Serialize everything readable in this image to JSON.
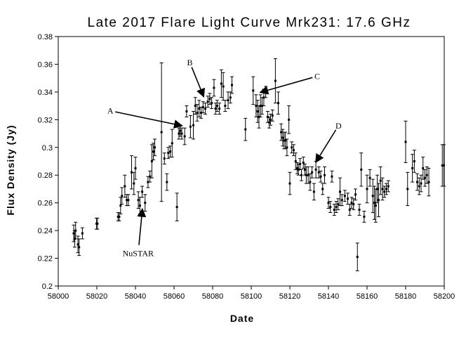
{
  "chart_data": {
    "type": "scatter",
    "title": "Late 2017 Flare Light Curve Mrk231: 17.6 GHz",
    "xlabel": "Date",
    "ylabel": "Flux Density (Jy)",
    "xlim": [
      58000,
      58200
    ],
    "ylim": [
      0.2,
      0.38
    ],
    "xticks": [
      58000,
      58020,
      58040,
      58060,
      58080,
      58100,
      58120,
      58140,
      58160,
      58180,
      58200
    ],
    "yticks": [
      0.2,
      0.22,
      0.24,
      0.26,
      0.28,
      0.3,
      0.32,
      0.34,
      0.36,
      0.38
    ],
    "xtick_labels": [
      "58000",
      "58020",
      "58040",
      "58060",
      "58080",
      "58100",
      "58120",
      "58140",
      "58160",
      "58180",
      "58200"
    ],
    "ytick_labels": [
      "0.2",
      "0.22",
      "0.24",
      "0.26",
      "0.28",
      "0.3",
      "0.32",
      "0.34",
      "0.36",
      "0.38"
    ],
    "grid": false,
    "legend": false,
    "marker_color": "#000000",
    "series": [
      {
        "points": [
          [
            58008.0,
            0.238,
            0.006
          ],
          [
            58008.5,
            0.234,
            0.006
          ],
          [
            58009.0,
            0.24,
            0.006
          ],
          [
            58010.2,
            0.23,
            0.006
          ],
          [
            58010.8,
            0.228,
            0.006
          ],
          [
            58012.5,
            0.238,
            0.004
          ],
          [
            58019.8,
            0.245,
            0.004
          ],
          [
            58020.3,
            0.245,
            0.004
          ],
          [
            58031.0,
            0.25,
            0.003
          ],
          [
            58031.6,
            0.25,
            0.003
          ],
          [
            58032.3,
            0.258,
            0.006
          ],
          [
            58033.0,
            0.265,
            0.006
          ],
          [
            58034.5,
            0.272,
            0.008
          ],
          [
            58035.5,
            0.262,
            0.004
          ],
          [
            58036.3,
            0.262,
            0.004
          ],
          [
            58038.0,
            0.282,
            0.012
          ],
          [
            58039.2,
            0.274,
            0.008
          ],
          [
            58040.0,
            0.285,
            0.008
          ],
          [
            58041.5,
            0.262,
            0.006
          ],
          [
            58042.3,
            0.258,
            0.006
          ],
          [
            58043.5,
            0.268,
            0.004
          ],
          [
            58045.0,
            0.26,
            0.006
          ],
          [
            58046.5,
            0.275,
            0.004
          ],
          [
            58047.5,
            0.279,
            0.004
          ],
          [
            58048.5,
            0.29,
            0.012
          ],
          [
            58049.3,
            0.297,
            0.006
          ],
          [
            58050.0,
            0.3,
            0.006
          ],
          [
            58053.5,
            0.311,
            0.05
          ],
          [
            58055.0,
            0.292,
            0.004
          ],
          [
            58056.3,
            0.275,
            0.006
          ],
          [
            58057.0,
            0.296,
            0.004
          ],
          [
            58058.0,
            0.297,
            0.004
          ],
          [
            58059.0,
            0.303,
            0.01
          ],
          [
            58061.5,
            0.257,
            0.01
          ],
          [
            58062.5,
            0.31,
            0.004
          ],
          [
            58063.2,
            0.312,
            0.004
          ],
          [
            58064.0,
            0.31,
            0.004
          ],
          [
            58065.5,
            0.308,
            0.006
          ],
          [
            58066.5,
            0.326,
            0.004
          ],
          [
            58068.5,
            0.315,
            0.008
          ],
          [
            58070.0,
            0.316,
            0.01
          ],
          [
            58071.0,
            0.33,
            0.006
          ],
          [
            58072.0,
            0.325,
            0.006
          ],
          [
            58073.0,
            0.328,
            0.006
          ],
          [
            58074.0,
            0.325,
            0.004
          ],
          [
            58075.0,
            0.329,
            0.004
          ],
          [
            58076.2,
            0.328,
            0.004
          ],
          [
            58077.5,
            0.333,
            0.004
          ],
          [
            58078.5,
            0.335,
            0.004
          ],
          [
            58079.5,
            0.332,
            0.004
          ],
          [
            58080.7,
            0.343,
            0.006
          ],
          [
            58081.5,
            0.328,
            0.004
          ],
          [
            58082.3,
            0.33,
            0.004
          ],
          [
            58083.5,
            0.328,
            0.004
          ],
          [
            58084.5,
            0.346,
            0.01
          ],
          [
            58085.5,
            0.344,
            0.01
          ],
          [
            58086.5,
            0.33,
            0.004
          ],
          [
            58088.0,
            0.334,
            0.006
          ],
          [
            58089.2,
            0.336,
            0.004
          ],
          [
            58090.0,
            0.345,
            0.006
          ],
          [
            58097.0,
            0.313,
            0.008
          ],
          [
            58101.0,
            0.341,
            0.01
          ],
          [
            58102.5,
            0.33,
            0.008
          ],
          [
            58103.3,
            0.326,
            0.008
          ],
          [
            58104.0,
            0.322,
            0.008
          ],
          [
            58104.8,
            0.33,
            0.008
          ],
          [
            58105.6,
            0.33,
            0.006
          ],
          [
            58106.5,
            0.336,
            0.006
          ],
          [
            58107.5,
            0.34,
            0.004
          ],
          [
            58108.5,
            0.322,
            0.004
          ],
          [
            58109.3,
            0.318,
            0.004
          ],
          [
            58110.0,
            0.32,
            0.004
          ],
          [
            58111.0,
            0.323,
            0.004
          ],
          [
            58112.5,
            0.348,
            0.016
          ],
          [
            58114.0,
            0.332,
            0.008
          ],
          [
            58115.5,
            0.311,
            0.006
          ],
          [
            58116.3,
            0.307,
            0.006
          ],
          [
            58117.0,
            0.305,
            0.006
          ],
          [
            58117.7,
            0.305,
            0.006
          ],
          [
            58118.5,
            0.3,
            0.006
          ],
          [
            58119.5,
            0.32,
            0.01
          ],
          [
            58120.0,
            0.274,
            0.008
          ],
          [
            58121.0,
            0.3,
            0.004
          ],
          [
            58122.0,
            0.298,
            0.004
          ],
          [
            58123.0,
            0.29,
            0.006
          ],
          [
            58123.8,
            0.285,
            0.004
          ],
          [
            58124.5,
            0.284,
            0.004
          ],
          [
            58125.3,
            0.288,
            0.004
          ],
          [
            58126.0,
            0.28,
            0.004
          ],
          [
            58127.0,
            0.289,
            0.004
          ],
          [
            58127.8,
            0.284,
            0.004
          ],
          [
            58128.5,
            0.28,
            0.006
          ],
          [
            58129.5,
            0.28,
            0.006
          ],
          [
            58130.5,
            0.275,
            0.006
          ],
          [
            58131.5,
            0.282,
            0.004
          ],
          [
            58132.5,
            0.268,
            0.006
          ],
          [
            58133.5,
            0.284,
            0.006
          ],
          [
            58135.0,
            0.282,
            0.004
          ],
          [
            58136.0,
            0.279,
            0.004
          ],
          [
            58137.0,
            0.27,
            0.004
          ],
          [
            58138.0,
            0.28,
            0.006
          ],
          [
            58140.0,
            0.26,
            0.004
          ],
          [
            58141.0,
            0.257,
            0.004
          ],
          [
            58141.8,
            0.279,
            0.004
          ],
          [
            58143.0,
            0.255,
            0.004
          ],
          [
            58144.0,
            0.257,
            0.004
          ],
          [
            58145.0,
            0.259,
            0.004
          ],
          [
            58146.0,
            0.268,
            0.01
          ],
          [
            58147.0,
            0.262,
            0.004
          ],
          [
            58148.5,
            0.265,
            0.004
          ],
          [
            58150.0,
            0.263,
            0.004
          ],
          [
            58151.0,
            0.255,
            0.004
          ],
          [
            58152.0,
            0.26,
            0.004
          ],
          [
            58153.0,
            0.259,
            0.004
          ],
          [
            58154.0,
            0.266,
            0.004
          ],
          [
            58155.0,
            0.221,
            0.01
          ],
          [
            58156.0,
            0.255,
            0.004
          ],
          [
            58157.0,
            0.284,
            0.012
          ],
          [
            58158.5,
            0.25,
            0.004
          ],
          [
            58160.0,
            0.27,
            0.01
          ],
          [
            58161.5,
            0.278,
            0.006
          ],
          [
            58163.0,
            0.265,
            0.012
          ],
          [
            58163.8,
            0.26,
            0.012
          ],
          [
            58164.5,
            0.258,
            0.012
          ],
          [
            58165.3,
            0.27,
            0.01
          ],
          [
            58166.0,
            0.262,
            0.012
          ],
          [
            58167.0,
            0.276,
            0.01
          ],
          [
            58168.0,
            0.27,
            0.008
          ],
          [
            58169.0,
            0.268,
            0.004
          ],
          [
            58170.0,
            0.27,
            0.004
          ],
          [
            58171.0,
            0.272,
            0.004
          ],
          [
            58180.0,
            0.304,
            0.015
          ],
          [
            58181.0,
            0.27,
            0.012
          ],
          [
            58183.5,
            0.285,
            0.01
          ],
          [
            58184.5,
            0.29,
            0.008
          ],
          [
            58186.0,
            0.275,
            0.006
          ],
          [
            58187.0,
            0.272,
            0.006
          ],
          [
            58188.0,
            0.274,
            0.006
          ],
          [
            58189.0,
            0.285,
            0.008
          ],
          [
            58190.0,
            0.278,
            0.006
          ],
          [
            58191.0,
            0.28,
            0.006
          ],
          [
            58192.0,
            0.275,
            0.01
          ],
          [
            58199.0,
            0.287,
            0.015
          ],
          [
            58199.8,
            0.287,
            0.015
          ]
        ]
      }
    ],
    "annotations": [
      {
        "text": "A",
        "label_x": 58027,
        "label_y": 0.3264,
        "arrow_to": [
          58064.2,
          0.3156
        ]
      },
      {
        "text": "B",
        "label_x": 58068.2,
        "label_y": 0.3612,
        "arrow_to": [
          58075.4,
          0.3365
        ]
      },
      {
        "text": "C",
        "label_x": 58134.2,
        "label_y": 0.3514,
        "arrow_to": [
          58104.6,
          0.3397
        ]
      },
      {
        "text": "D",
        "label_x": 58145.2,
        "label_y": 0.3157,
        "arrow_to": [
          58133.4,
          0.2892
        ]
      },
      {
        "text": "NuSTAR",
        "label_x": 58041.4,
        "label_y": 0.2235,
        "arrow_to": [
          58043.6,
          0.2557
        ]
      }
    ]
  }
}
